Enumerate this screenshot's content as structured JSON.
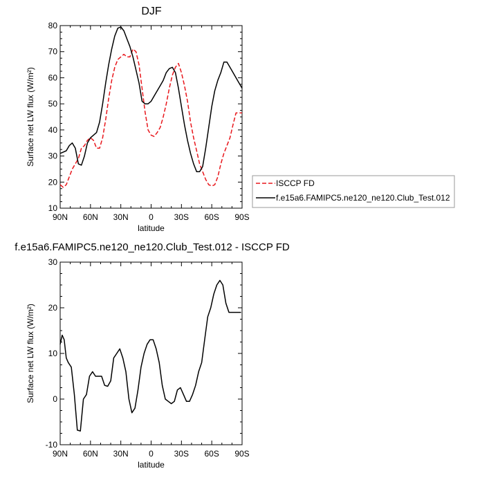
{
  "chart_data": [
    {
      "type": "line",
      "title": "DJF",
      "xlabel": "latitude",
      "ylabel": "Surface net LW flux (W/m²)",
      "ylim": [
        10,
        80
      ],
      "xlim": [
        -90,
        90
      ],
      "yticks": [
        10,
        20,
        30,
        40,
        50,
        60,
        70,
        80
      ],
      "xticks": [
        {
          "value": -90,
          "label": "90N"
        },
        {
          "value": -60,
          "label": "60N"
        },
        {
          "value": -30,
          "label": "30N"
        },
        {
          "value": 0,
          "label": "0"
        },
        {
          "value": 30,
          "label": "30S"
        },
        {
          "value": 60,
          "label": "60S"
        },
        {
          "value": 90,
          "label": "90S"
        }
      ],
      "legend_position": "right-bottom",
      "series": [
        {
          "name": "ISCCP FD",
          "color": "#e8161b",
          "style": "dashed",
          "x": [
            -90,
            -87,
            -84,
            -81,
            -78,
            -75,
            -72,
            -69,
            -66,
            -63,
            -60,
            -57,
            -54,
            -51,
            -48,
            -45,
            -42,
            -39,
            -36,
            -33,
            -30,
            -27,
            -24,
            -21,
            -18,
            -15,
            -12,
            -9,
            -6,
            -3,
            0,
            3,
            6,
            9,
            12,
            15,
            18,
            21,
            24,
            27,
            30,
            33,
            36,
            39,
            42,
            45,
            48,
            51,
            54,
            57,
            60,
            63,
            66,
            69,
            72,
            75,
            78,
            81,
            84,
            87,
            90
          ],
          "y": [
            19,
            18,
            19,
            22,
            25,
            27,
            29,
            33,
            34,
            36,
            37,
            36,
            33,
            33,
            37,
            44,
            52,
            59,
            64,
            67,
            68,
            69,
            68,
            68,
            71,
            70,
            65,
            56,
            47,
            40,
            38,
            37.5,
            39,
            41,
            45,
            50,
            56,
            61,
            64,
            65.5,
            62,
            57,
            51,
            43,
            37,
            32,
            27,
            24,
            21,
            19,
            18.5,
            19,
            22,
            27,
            31,
            34,
            37,
            42,
            46.5,
            46.5,
            46.5
          ]
        },
        {
          "name": "f.e15a6.FAMIPC5.ne120_ne120.Club_Test.012",
          "color": "#000000",
          "style": "solid",
          "x": [
            -90,
            -87,
            -84,
            -81,
            -78,
            -75,
            -72,
            -69,
            -66,
            -63,
            -60,
            -57,
            -54,
            -51,
            -48,
            -45,
            -42,
            -39,
            -36,
            -33,
            -30,
            -27,
            -24,
            -21,
            -18,
            -15,
            -12,
            -9,
            -6,
            -3,
            0,
            3,
            6,
            9,
            12,
            15,
            18,
            21,
            24,
            27,
            30,
            33,
            36,
            39,
            42,
            45,
            48,
            51,
            54,
            57,
            60,
            63,
            66,
            69,
            72,
            75,
            78,
            81,
            84,
            87,
            90
          ],
          "y": [
            31,
            31.5,
            32,
            34,
            35,
            33,
            27,
            26.5,
            30,
            35,
            37,
            38,
            39,
            43,
            50,
            58,
            65,
            71,
            76,
            79,
            79.5,
            78,
            75,
            72,
            68,
            63,
            58,
            51,
            50,
            50,
            51,
            53,
            55,
            57,
            59,
            62,
            63.5,
            64,
            62,
            56,
            49,
            42,
            36,
            31,
            27,
            24,
            24,
            26,
            33,
            41,
            49,
            55,
            59,
            62,
            66,
            66,
            64,
            62,
            60,
            58,
            56
          ]
        }
      ]
    },
    {
      "type": "line",
      "title": "f.e15a6.FAMIPC5.ne120_ne120.Club_Test.012 - ISCCP FD",
      "xlabel": "latitude",
      "ylabel": "Surface net LW flux (W/m²)",
      "ylim": [
        -10,
        30
      ],
      "xlim": [
        -90,
        90
      ],
      "yticks": [
        -10,
        0,
        10,
        20,
        30
      ],
      "xticks": [
        {
          "value": -90,
          "label": "90N"
        },
        {
          "value": -60,
          "label": "60N"
        },
        {
          "value": -30,
          "label": "30N"
        },
        {
          "value": 0,
          "label": "0"
        },
        {
          "value": 30,
          "label": "30S"
        },
        {
          "value": 60,
          "label": "60S"
        },
        {
          "value": 90,
          "label": "90S"
        }
      ],
      "series": [
        {
          "name": "",
          "color": "#000000",
          "style": "solid",
          "x": [
            -90,
            -88,
            -86,
            -84,
            -82,
            -79,
            -76,
            -73,
            -70,
            -67,
            -64,
            -61,
            -58,
            -55,
            -52,
            -49,
            -46,
            -43,
            -40,
            -37,
            -34,
            -31,
            -28,
            -25,
            -22,
            -19,
            -16,
            -13,
            -10,
            -7,
            -4,
            -1,
            2,
            5,
            8,
            11,
            14,
            17,
            20,
            23,
            26,
            29,
            32,
            35,
            38,
            41,
            44,
            47,
            50,
            53,
            56,
            59,
            62,
            65,
            68,
            71,
            74,
            77,
            80,
            83,
            86,
            89
          ],
          "y": [
            12,
            14,
            13,
            9,
            8,
            7,
            1,
            -6.8,
            -7,
            0,
            1,
            5,
            6,
            5,
            5,
            5,
            3,
            2.8,
            4,
            9,
            10,
            11,
            9,
            6,
            0,
            -3,
            -2,
            2,
            7,
            10,
            12,
            13,
            13,
            11,
            8,
            3,
            0,
            -0.5,
            -1,
            -0.5,
            2,
            2.5,
            1,
            -0.5,
            -0.5,
            1,
            3,
            6,
            8,
            13,
            18,
            20,
            23,
            25,
            26,
            25,
            21,
            19,
            19,
            19,
            19,
            19
          ]
        }
      ]
    }
  ]
}
